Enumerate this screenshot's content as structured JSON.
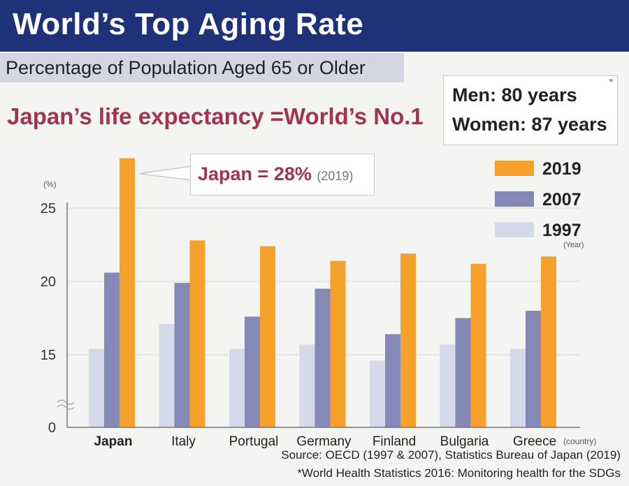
{
  "title": "World’s Top Aging Rate",
  "subtitle": "Percentage of Population Aged 65 or Older",
  "headline": "Japan’s life expectancy =World’s No.1",
  "life_expectancy": {
    "men": "Men: 80 years",
    "women": "Women: 87 years",
    "marker": "*"
  },
  "callout": {
    "text": "Japan = 28%",
    "year": "(2019)"
  },
  "chart_data": {
    "type": "bar",
    "y_unit_label": "(%)",
    "x_unit_label": "(country)",
    "legend_unit_label": "(Year)",
    "categories": [
      "Japan",
      "Italy",
      "Portugal",
      "Germany",
      "Finland",
      "Bulgaria",
      "Greece"
    ],
    "series": [
      {
        "name": "1997",
        "color": "#d6d9e9",
        "values": [
          15.4,
          17.1,
          15.4,
          15.7,
          14.6,
          15.7,
          15.4
        ]
      },
      {
        "name": "2007",
        "color": "#8489b8",
        "values": [
          20.6,
          19.9,
          17.6,
          19.5,
          16.4,
          17.5,
          18.0
        ]
      },
      {
        "name": "2019",
        "color": "#f5a12c",
        "values": [
          28.4,
          22.8,
          22.4,
          21.4,
          21.9,
          21.2,
          21.7
        ]
      }
    ],
    "legend_order": [
      "2019",
      "2007",
      "1997"
    ],
    "y_ticks": [
      0,
      15,
      20,
      25
    ],
    "ylim": [
      0,
      29
    ],
    "axis_break": true,
    "grid": true,
    "legend_position": "right"
  },
  "footer": {
    "source": "Source: OECD (1997 & 2007), Statistics Bureau of Japan (2019)",
    "note": "*World Health Statistics 2016: Monitoring health for the SDGs"
  }
}
